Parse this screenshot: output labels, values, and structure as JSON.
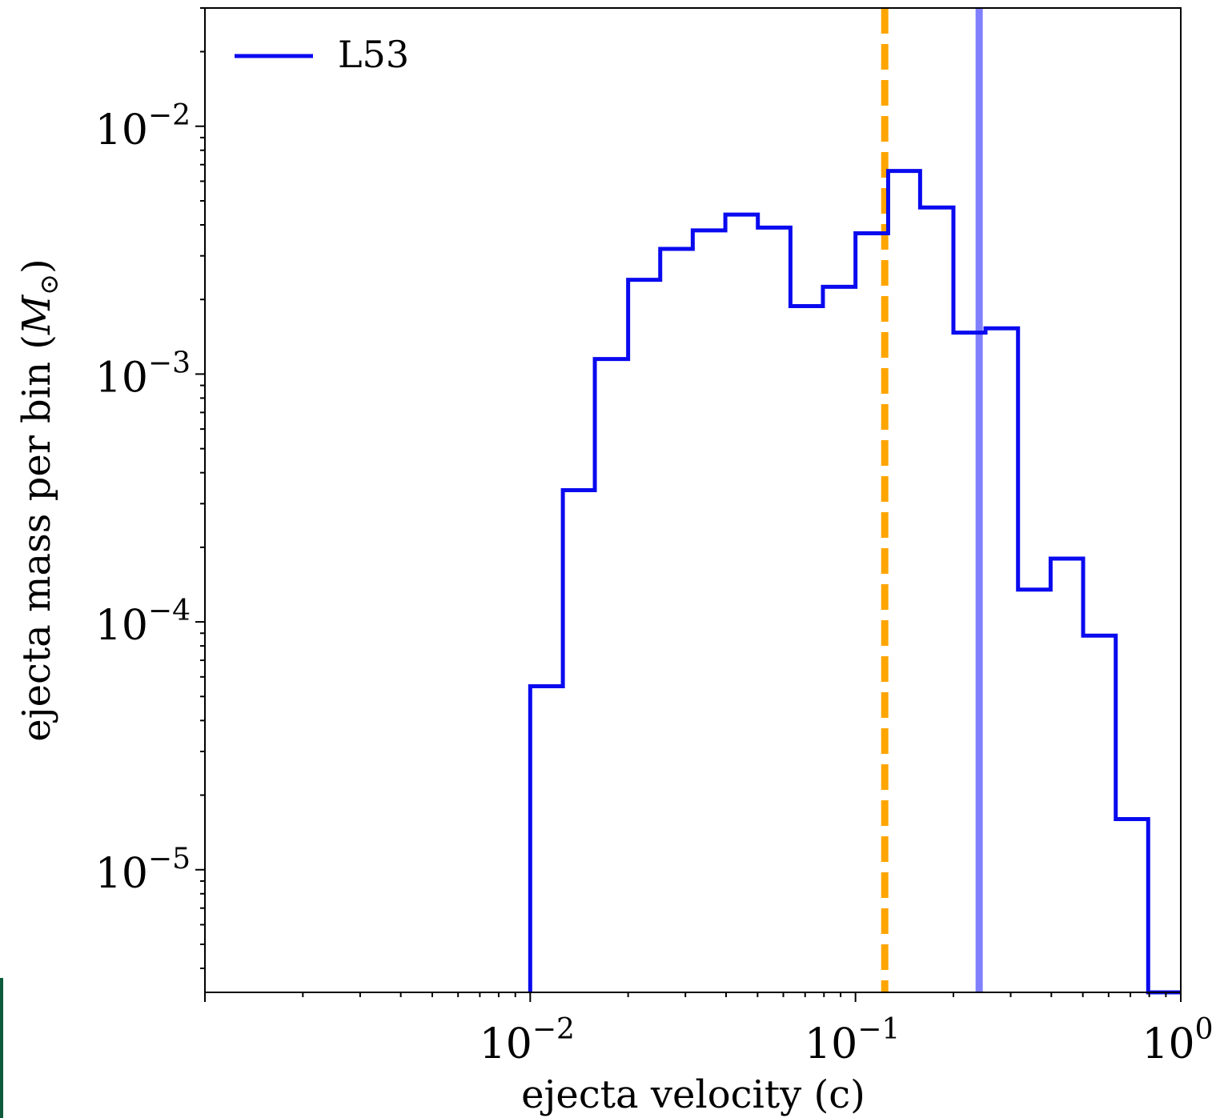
{
  "chart_data": {
    "type": "line",
    "style": "step-histogram",
    "xlabel": "ejecta velocity (c)",
    "ylabel": "ejecta mass per bin (",
    "ylabel_symbol": "M",
    "ylabel_subscript": "⊙",
    "ylabel_suffix": ")",
    "xscale": "log",
    "yscale": "log",
    "xlim": [
      0.001,
      1.0
    ],
    "ylim": [
      3.2e-06,
      0.03
    ],
    "x_ticks": [
      {
        "value": 0.01,
        "base": "10",
        "exp": "−2"
      },
      {
        "value": 0.1,
        "base": "10",
        "exp": "−1"
      },
      {
        "value": 1.0,
        "base": "10",
        "exp": "0"
      }
    ],
    "y_ticks": [
      {
        "value": 0.01,
        "base": "10",
        "exp": "−2"
      },
      {
        "value": 0.001,
        "base": "10",
        "exp": "−3"
      },
      {
        "value": 0.0001,
        "base": "10",
        "exp": "−4"
      },
      {
        "value": 1e-05,
        "base": "10",
        "exp": "−5"
      }
    ],
    "grid": false,
    "legend_position": "top-left",
    "series": [
      {
        "name": "L53",
        "color": "#0a0aef",
        "bin_edges": [
          0.01,
          0.0126,
          0.0158,
          0.02,
          0.0251,
          0.0316,
          0.0398,
          0.0501,
          0.0631,
          0.0794,
          0.1,
          0.126,
          0.158,
          0.2,
          0.251,
          0.316,
          0.398,
          0.501,
          0.631,
          0.794,
          1.0
        ],
        "values": [
          5.5e-05,
          0.00034,
          0.00115,
          0.0024,
          0.0032,
          0.0038,
          0.0044,
          0.0039,
          0.00188,
          0.00225,
          0.0037,
          0.0066,
          0.0047,
          0.00147,
          0.00153,
          0.000135,
          0.00018,
          8.8e-05,
          1.6e-05,
          3.2e-06
        ]
      }
    ],
    "vlines": [
      {
        "x": 0.123,
        "color": "#ffa500",
        "style": "dashed"
      },
      {
        "x": 0.24,
        "color": "#8080ff",
        "style": "solid"
      }
    ]
  }
}
